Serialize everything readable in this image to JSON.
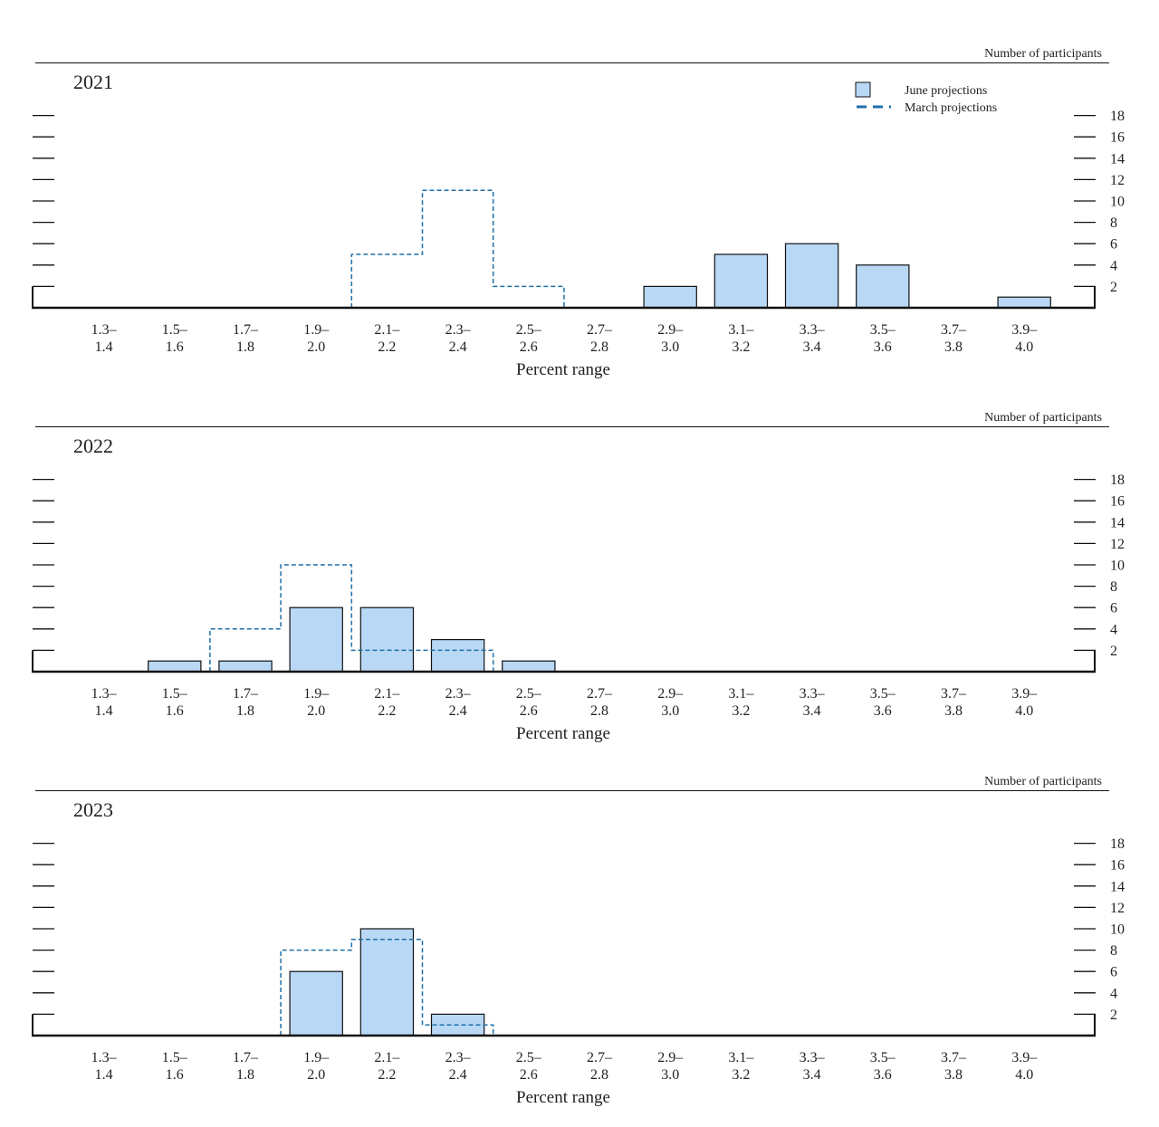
{
  "legend": {
    "june_label": "June projections",
    "march_label": "March projections"
  },
  "colors": {
    "june_fill": "#b8d8f6",
    "bar_stroke": "#111111",
    "march_line": "#1f6fa9",
    "axis": "#111111"
  },
  "chart_data": [
    {
      "type": "bar",
      "title": "2021",
      "ylabel": "Number of participants",
      "xlabel": "Percent range",
      "categories": [
        [
          "1.3–",
          "1.4"
        ],
        [
          "1.5–",
          "1.6"
        ],
        [
          "1.7–",
          "1.8"
        ],
        [
          "1.9–",
          "2.0"
        ],
        [
          "2.1–",
          "2.2"
        ],
        [
          "2.3–",
          "2.4"
        ],
        [
          "2.5–",
          "2.6"
        ],
        [
          "2.7–",
          "2.8"
        ],
        [
          "2.9–",
          "3.0"
        ],
        [
          "3.1–",
          "3.2"
        ],
        [
          "3.3–",
          "3.4"
        ],
        [
          "3.5–",
          "3.6"
        ],
        [
          "3.7–",
          "3.8"
        ],
        [
          "3.9–",
          "4.0"
        ]
      ],
      "ylim": [
        0,
        18
      ],
      "yticks": [
        2,
        4,
        6,
        8,
        10,
        12,
        14,
        16,
        18
      ],
      "series": [
        {
          "name": "June projections",
          "values": [
            0,
            0,
            0,
            0,
            0,
            0,
            0,
            0,
            2,
            5,
            6,
            4,
            0,
            1
          ]
        },
        {
          "name": "March projections",
          "values": [
            0,
            0,
            0,
            0,
            5,
            11,
            2,
            0,
            0,
            0,
            0,
            0,
            0,
            0
          ]
        }
      ]
    },
    {
      "type": "bar",
      "title": "2022",
      "ylabel": "Number of participants",
      "xlabel": "Percent range",
      "categories": [
        [
          "1.3–",
          "1.4"
        ],
        [
          "1.5–",
          "1.6"
        ],
        [
          "1.7–",
          "1.8"
        ],
        [
          "1.9–",
          "2.0"
        ],
        [
          "2.1–",
          "2.2"
        ],
        [
          "2.3–",
          "2.4"
        ],
        [
          "2.5–",
          "2.6"
        ],
        [
          "2.7–",
          "2.8"
        ],
        [
          "2.9–",
          "3.0"
        ],
        [
          "3.1–",
          "3.2"
        ],
        [
          "3.3–",
          "3.4"
        ],
        [
          "3.5–",
          "3.6"
        ],
        [
          "3.7–",
          "3.8"
        ],
        [
          "3.9–",
          "4.0"
        ]
      ],
      "ylim": [
        0,
        18
      ],
      "yticks": [
        2,
        4,
        6,
        8,
        10,
        12,
        14,
        16,
        18
      ],
      "series": [
        {
          "name": "June projections",
          "values": [
            0,
            1,
            1,
            6,
            6,
            3,
            1,
            0,
            0,
            0,
            0,
            0,
            0,
            0
          ]
        },
        {
          "name": "March projections",
          "values": [
            0,
            0,
            4,
            10,
            2,
            2,
            0,
            0,
            0,
            0,
            0,
            0,
            0,
            0
          ]
        }
      ]
    },
    {
      "type": "bar",
      "title": "2023",
      "ylabel": "Number of participants",
      "xlabel": "Percent range",
      "categories": [
        [
          "1.3–",
          "1.4"
        ],
        [
          "1.5–",
          "1.6"
        ],
        [
          "1.7–",
          "1.8"
        ],
        [
          "1.9–",
          "2.0"
        ],
        [
          "2.1–",
          "2.2"
        ],
        [
          "2.3–",
          "2.4"
        ],
        [
          "2.5–",
          "2.6"
        ],
        [
          "2.7–",
          "2.8"
        ],
        [
          "2.9–",
          "3.0"
        ],
        [
          "3.1–",
          "3.2"
        ],
        [
          "3.3–",
          "3.4"
        ],
        [
          "3.5–",
          "3.6"
        ],
        [
          "3.7–",
          "3.8"
        ],
        [
          "3.9–",
          "4.0"
        ]
      ],
      "ylim": [
        0,
        18
      ],
      "yticks": [
        2,
        4,
        6,
        8,
        10,
        12,
        14,
        16,
        18
      ],
      "series": [
        {
          "name": "June projections",
          "values": [
            0,
            0,
            0,
            6,
            10,
            2,
            0,
            0,
            0,
            0,
            0,
            0,
            0,
            0
          ]
        },
        {
          "name": "March projections",
          "values": [
            0,
            0,
            0,
            8,
            9,
            1,
            0,
            0,
            0,
            0,
            0,
            0,
            0,
            0
          ]
        }
      ]
    }
  ]
}
